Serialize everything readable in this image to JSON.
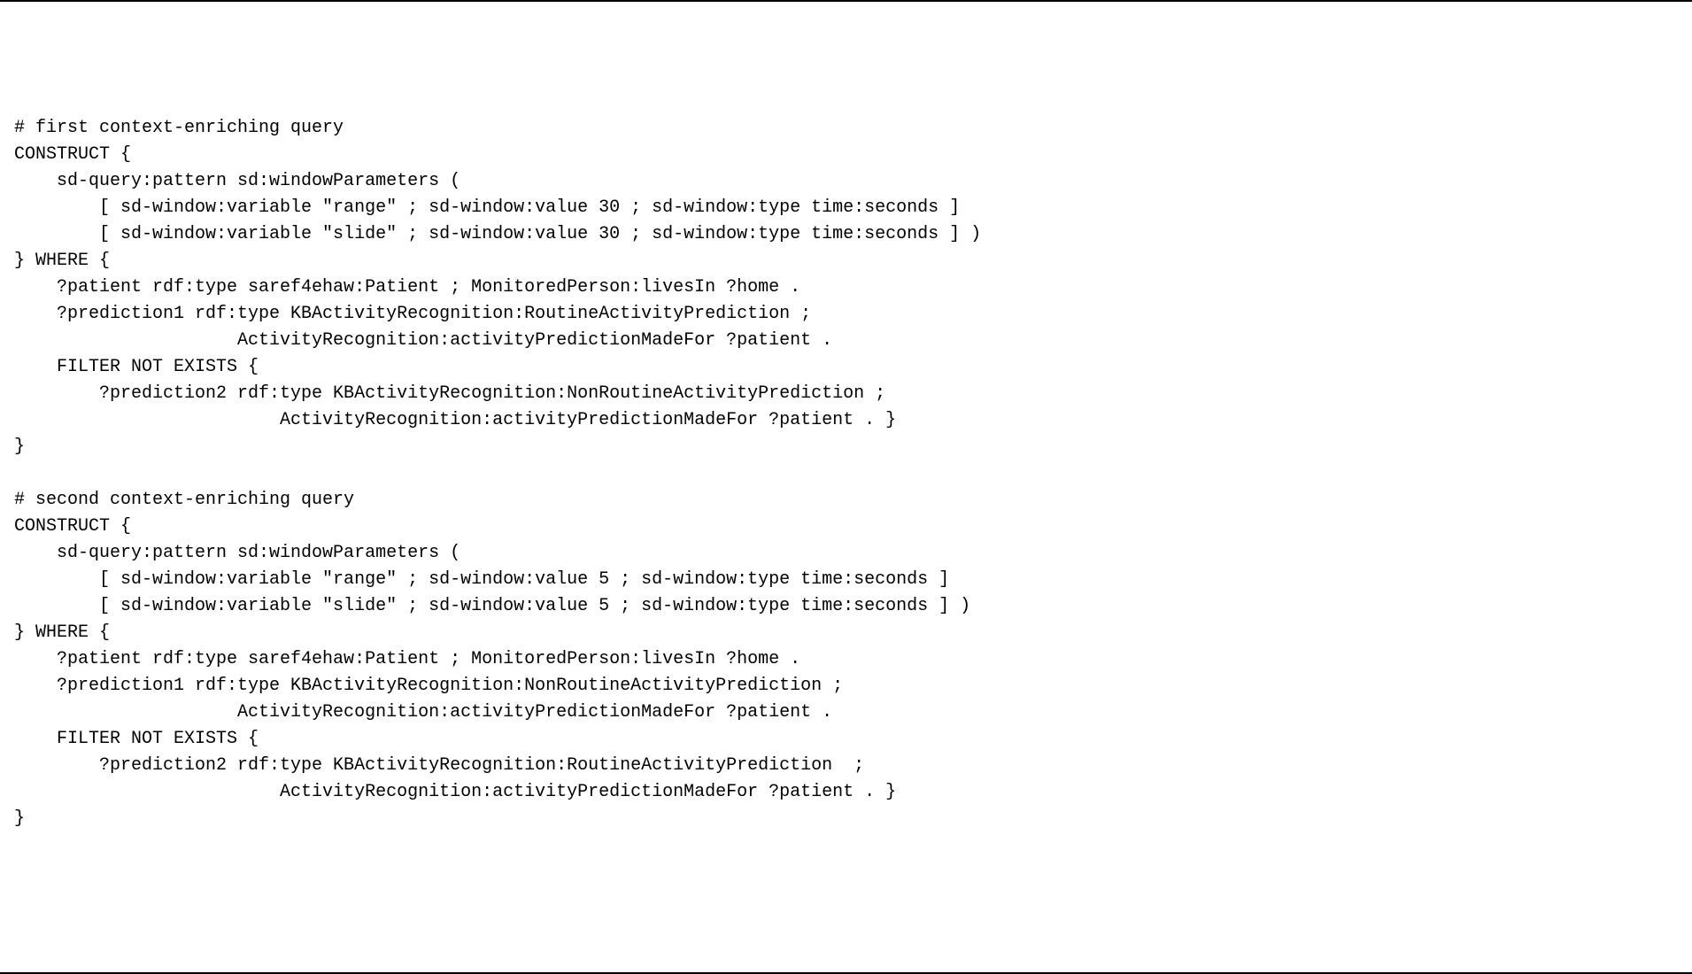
{
  "code": {
    "lines": [
      "# first context-enriching query",
      "CONSTRUCT {",
      "    sd-query:pattern sd:windowParameters (",
      "        [ sd-window:variable \"range\" ; sd-window:value 30 ; sd-window:type time:seconds ]",
      "        [ sd-window:variable \"slide\" ; sd-window:value 30 ; sd-window:type time:seconds ] )",
      "} WHERE {",
      "    ?patient rdf:type saref4ehaw:Patient ; MonitoredPerson:livesIn ?home .",
      "    ?prediction1 rdf:type KBActivityRecognition:RoutineActivityPrediction ;",
      "                     ActivityRecognition:activityPredictionMadeFor ?patient .",
      "    FILTER NOT EXISTS {",
      "        ?prediction2 rdf:type KBActivityRecognition:NonRoutineActivityPrediction ;",
      "                         ActivityRecognition:activityPredictionMadeFor ?patient . }",
      "}",
      "",
      "# second context-enriching query",
      "CONSTRUCT {",
      "    sd-query:pattern sd:windowParameters (",
      "        [ sd-window:variable \"range\" ; sd-window:value 5 ; sd-window:type time:seconds ]",
      "        [ sd-window:variable \"slide\" ; sd-window:value 5 ; sd-window:type time:seconds ] )",
      "} WHERE {",
      "    ?patient rdf:type saref4ehaw:Patient ; MonitoredPerson:livesIn ?home .",
      "    ?prediction1 rdf:type KBActivityRecognition:NonRoutineActivityPrediction ;",
      "                     ActivityRecognition:activityPredictionMadeFor ?patient .",
      "    FILTER NOT EXISTS {",
      "        ?prediction2 rdf:type KBActivityRecognition:RoutineActivityPrediction  ;",
      "                         ActivityRecognition:activityPredictionMadeFor ?patient . }",
      "}"
    ]
  },
  "styling": {
    "font_family": "Courier New, monospace",
    "font_size": 20,
    "line_height": 1.5,
    "text_color": "#000000",
    "background_color": "#ffffff",
    "border_color": "#000000",
    "border_width": 2
  }
}
